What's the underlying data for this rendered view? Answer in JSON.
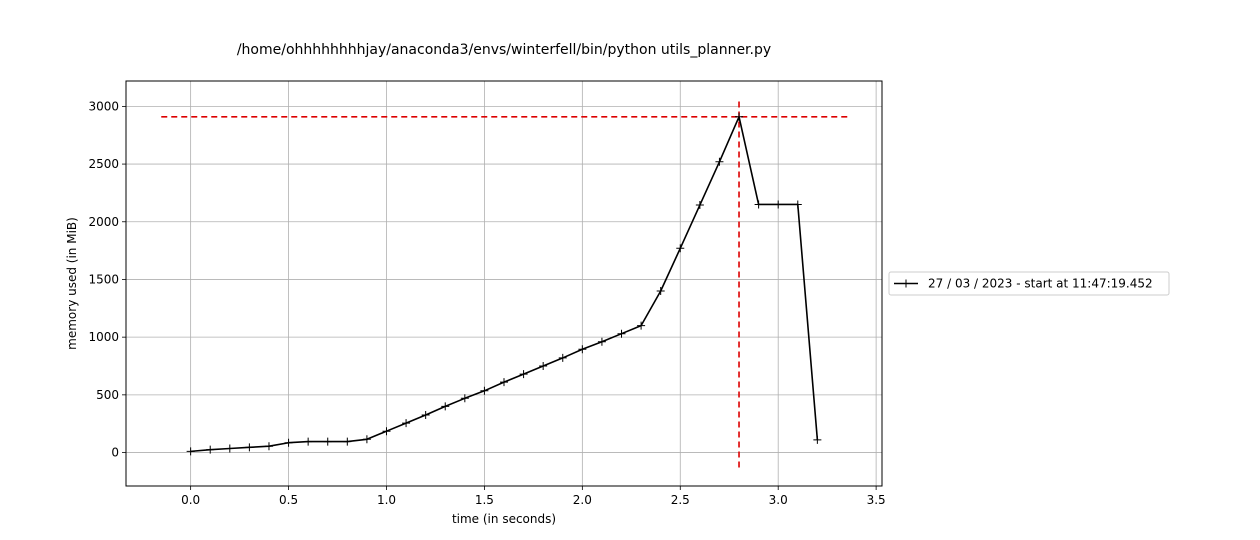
{
  "chart_data": {
    "type": "line",
    "title": "/home/ohhhhhhhhjay/anaconda3/envs/winterfell/bin/python utils_planner.py",
    "xlabel": "time (in seconds)",
    "ylabel": "memory used (in MiB)",
    "xlim": [
      -0.33,
      3.53
    ],
    "ylim": [
      -290,
      3220
    ],
    "xticks": [
      0.0,
      0.5,
      1.0,
      1.5,
      2.0,
      2.5,
      3.0,
      3.5
    ],
    "xtick_labels": [
      "0.0",
      "0.5",
      "1.0",
      "1.5",
      "2.0",
      "2.5",
      "3.0",
      "3.5"
    ],
    "yticks": [
      0,
      500,
      1000,
      1500,
      2000,
      2500,
      3000
    ],
    "ytick_labels": [
      "0",
      "500",
      "1000",
      "1500",
      "2000",
      "2500",
      "3000"
    ],
    "grid": true,
    "legend_position": "right, outside plot",
    "series": [
      {
        "name": "27 / 03 / 2023 - start at 11:47:19.452",
        "color": "#000000",
        "marker": "+",
        "x": [
          0.0,
          0.1,
          0.2,
          0.3,
          0.4,
          0.5,
          0.6,
          0.7,
          0.8,
          0.9,
          1.0,
          1.1,
          1.2,
          1.3,
          1.4,
          1.5,
          1.6,
          1.7,
          1.8,
          1.9,
          2.0,
          2.1,
          2.2,
          2.3,
          2.4,
          2.5,
          2.6,
          2.7,
          2.8,
          2.9,
          3.0,
          3.1,
          3.2
        ],
        "y": [
          10,
          25,
          35,
          45,
          55,
          85,
          95,
          95,
          95,
          115,
          185,
          255,
          325,
          400,
          470,
          535,
          610,
          680,
          750,
          820,
          895,
          960,
          1030,
          1100,
          1400,
          1770,
          2145,
          2520,
          2910,
          2150,
          2150,
          2150,
          110
        ]
      }
    ],
    "peak_lines": {
      "color": "#dd0000",
      "horizontal_y": 2910,
      "horizontal_x_range": [
        -0.15,
        3.37
      ],
      "vertical_x": 2.8,
      "vertical_y_range": [
        -130,
        3050
      ]
    }
  }
}
